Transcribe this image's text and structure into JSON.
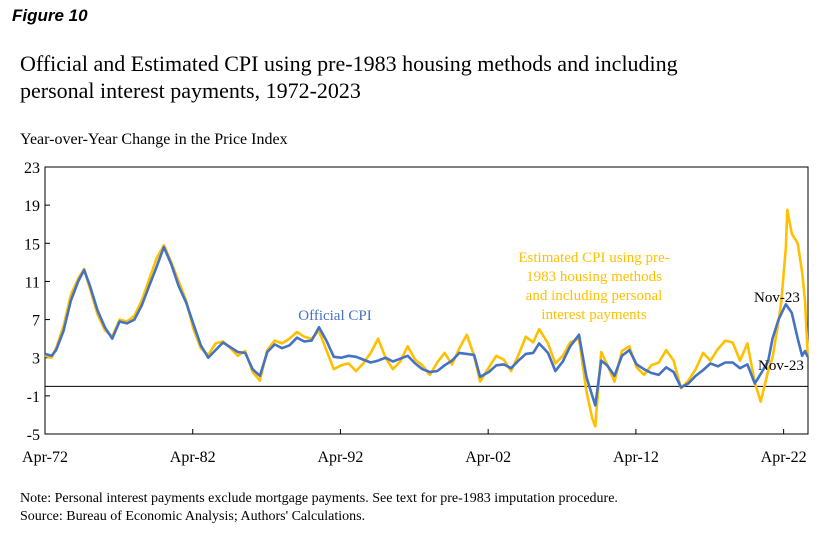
{
  "figure_label": "Figure 10",
  "title_line1": "Official and Estimated CPI using pre-1983 housing methods and including",
  "title_line2": "personal interest payments, 1972-2023",
  "note": "Note: Personal interest payments exclude mortgage payments. See text for pre-1983 imputation procedure.",
  "source": "Source: Bureau of Economic Analysis; Authors' Calculations.",
  "colors": {
    "official": "#4472C4",
    "estimated": "#FFC000",
    "axis": "#000000"
  },
  "chart_data": {
    "type": "line",
    "title": "Official and Estimated CPI using pre-1983 housing methods and including personal interest payments, 1972-2023",
    "ylabel": "Year-over-Year Change in the Price Index",
    "xlabel": "",
    "ylim": [
      -5,
      23
    ],
    "yticks": [
      -5,
      -1,
      3,
      7,
      11,
      15,
      19,
      23
    ],
    "xlim": [
      1972.25,
      2023.9
    ],
    "xticks": [
      {
        "label": "Apr-72",
        "x": 1972.25
      },
      {
        "label": "Apr-82",
        "x": 1982.25
      },
      {
        "label": "Apr-92",
        "x": 1992.25
      },
      {
        "label": "Apr-02",
        "x": 2002.25
      },
      {
        "label": "Apr-12",
        "x": 2012.25
      },
      {
        "label": "Apr-22",
        "x": 2022.25
      }
    ],
    "series": [
      {
        "name": "Official CPI",
        "label_lines": [
          "Official CPI"
        ],
        "points": [
          [
            1972.25,
            3.4
          ],
          [
            1972.7,
            3.2
          ],
          [
            1973.0,
            3.8
          ],
          [
            1973.5,
            5.8
          ],
          [
            1974.0,
            9.0
          ],
          [
            1974.5,
            11.0
          ],
          [
            1974.9,
            12.2
          ],
          [
            1975.3,
            10.5
          ],
          [
            1975.8,
            8.0
          ],
          [
            1976.3,
            6.2
          ],
          [
            1976.8,
            5.0
          ],
          [
            1977.3,
            6.8
          ],
          [
            1977.8,
            6.6
          ],
          [
            1978.3,
            7.0
          ],
          [
            1978.8,
            8.5
          ],
          [
            1979.3,
            10.5
          ],
          [
            1979.8,
            12.5
          ],
          [
            1980.3,
            14.6
          ],
          [
            1980.8,
            12.8
          ],
          [
            1981.3,
            10.5
          ],
          [
            1981.8,
            8.8
          ],
          [
            1982.3,
            6.5
          ],
          [
            1982.8,
            4.3
          ],
          [
            1983.3,
            3.0
          ],
          [
            1983.8,
            3.8
          ],
          [
            1984.3,
            4.6
          ],
          [
            1984.8,
            4.1
          ],
          [
            1985.3,
            3.6
          ],
          [
            1985.8,
            3.5
          ],
          [
            1986.3,
            1.8
          ],
          [
            1986.8,
            1.1
          ],
          [
            1987.3,
            3.6
          ],
          [
            1987.8,
            4.4
          ],
          [
            1988.3,
            4.0
          ],
          [
            1988.8,
            4.3
          ],
          [
            1989.3,
            5.1
          ],
          [
            1989.8,
            4.7
          ],
          [
            1990.3,
            4.8
          ],
          [
            1990.8,
            6.2
          ],
          [
            1991.3,
            4.8
          ],
          [
            1991.8,
            3.1
          ],
          [
            1992.3,
            3.0
          ],
          [
            1992.8,
            3.2
          ],
          [
            1993.3,
            3.1
          ],
          [
            1993.8,
            2.8
          ],
          [
            1994.3,
            2.5
          ],
          [
            1994.8,
            2.7
          ],
          [
            1995.3,
            3.0
          ],
          [
            1995.8,
            2.6
          ],
          [
            1996.3,
            2.9
          ],
          [
            1996.8,
            3.2
          ],
          [
            1997.3,
            2.4
          ],
          [
            1997.8,
            1.8
          ],
          [
            1998.3,
            1.5
          ],
          [
            1998.8,
            1.6
          ],
          [
            1999.3,
            2.2
          ],
          [
            1999.8,
            2.7
          ],
          [
            2000.3,
            3.5
          ],
          [
            2000.8,
            3.4
          ],
          [
            2001.3,
            3.3
          ],
          [
            2001.7,
            1.0
          ],
          [
            2002.3,
            1.5
          ],
          [
            2002.8,
            2.2
          ],
          [
            2003.3,
            2.3
          ],
          [
            2003.8,
            1.9
          ],
          [
            2004.3,
            2.7
          ],
          [
            2004.8,
            3.4
          ],
          [
            2005.3,
            3.5
          ],
          [
            2005.7,
            4.5
          ],
          [
            2006.3,
            3.5
          ],
          [
            2006.8,
            1.6
          ],
          [
            2007.3,
            2.6
          ],
          [
            2007.8,
            4.2
          ],
          [
            2008.4,
            5.4
          ],
          [
            2008.9,
            1.0
          ],
          [
            2009.3,
            -1.0
          ],
          [
            2009.5,
            -2.0
          ],
          [
            2009.9,
            2.7
          ],
          [
            2010.3,
            2.2
          ],
          [
            2010.8,
            1.1
          ],
          [
            2011.3,
            3.2
          ],
          [
            2011.8,
            3.8
          ],
          [
            2012.3,
            2.3
          ],
          [
            2012.8,
            1.8
          ],
          [
            2013.3,
            1.4
          ],
          [
            2013.8,
            1.2
          ],
          [
            2014.3,
            2.0
          ],
          [
            2014.8,
            1.5
          ],
          [
            2015.3,
            -0.1
          ],
          [
            2015.8,
            0.3
          ],
          [
            2016.3,
            1.1
          ],
          [
            2016.8,
            1.7
          ],
          [
            2017.3,
            2.4
          ],
          [
            2017.8,
            2.1
          ],
          [
            2018.3,
            2.5
          ],
          [
            2018.8,
            2.5
          ],
          [
            2019.3,
            1.9
          ],
          [
            2019.8,
            2.3
          ],
          [
            2020.3,
            0.3
          ],
          [
            2020.7,
            1.3
          ],
          [
            2021.2,
            2.6
          ],
          [
            2021.5,
            5.0
          ],
          [
            2021.9,
            7.0
          ],
          [
            2022.4,
            8.6
          ],
          [
            2022.8,
            7.7
          ],
          [
            2023.2,
            5.0
          ],
          [
            2023.5,
            3.2
          ],
          [
            2023.7,
            3.7
          ],
          [
            2023.88,
            3.1
          ]
        ]
      },
      {
        "name": "Estimated CPI using pre-1983 housing methods and including personal interest payments",
        "label_lines": [
          "Estimated CPI using pre-",
          "1983 housing methods",
          "and including  personal",
          "interest payments"
        ],
        "points": [
          [
            1972.25,
            3.2
          ],
          [
            1972.7,
            3.0
          ],
          [
            1973.0,
            4.0
          ],
          [
            1973.5,
            6.3
          ],
          [
            1974.0,
            9.6
          ],
          [
            1974.5,
            11.3
          ],
          [
            1974.9,
            12.3
          ],
          [
            1975.3,
            10.2
          ],
          [
            1975.8,
            7.6
          ],
          [
            1976.3,
            5.9
          ],
          [
            1976.8,
            5.2
          ],
          [
            1977.3,
            7.0
          ],
          [
            1977.8,
            6.8
          ],
          [
            1978.3,
            7.4
          ],
          [
            1978.8,
            9.0
          ],
          [
            1979.3,
            11.2
          ],
          [
            1979.8,
            13.4
          ],
          [
            1980.3,
            14.8
          ],
          [
            1980.8,
            13.0
          ],
          [
            1981.3,
            11.0
          ],
          [
            1981.8,
            9.0
          ],
          [
            1982.3,
            6.0
          ],
          [
            1982.8,
            4.0
          ],
          [
            1983.3,
            3.3
          ],
          [
            1983.8,
            4.5
          ],
          [
            1984.3,
            4.7
          ],
          [
            1984.8,
            4.0
          ],
          [
            1985.3,
            3.2
          ],
          [
            1985.8,
            3.7
          ],
          [
            1986.3,
            1.5
          ],
          [
            1986.8,
            0.6
          ],
          [
            1987.3,
            3.8
          ],
          [
            1987.8,
            4.8
          ],
          [
            1988.3,
            4.5
          ],
          [
            1988.8,
            5.0
          ],
          [
            1989.3,
            5.7
          ],
          [
            1989.8,
            5.2
          ],
          [
            1990.3,
            5.0
          ],
          [
            1990.8,
            5.8
          ],
          [
            1991.3,
            3.8
          ],
          [
            1991.8,
            1.8
          ],
          [
            1992.3,
            2.2
          ],
          [
            1992.8,
            2.4
          ],
          [
            1993.3,
            1.6
          ],
          [
            1993.8,
            2.4
          ],
          [
            1994.3,
            3.5
          ],
          [
            1994.8,
            5.0
          ],
          [
            1995.3,
            3.0
          ],
          [
            1995.8,
            1.8
          ],
          [
            1996.3,
            2.6
          ],
          [
            1996.8,
            4.2
          ],
          [
            1997.3,
            2.8
          ],
          [
            1997.8,
            2.2
          ],
          [
            1998.3,
            1.2
          ],
          [
            1998.8,
            2.5
          ],
          [
            1999.3,
            3.5
          ],
          [
            1999.8,
            2.3
          ],
          [
            2000.3,
            4.0
          ],
          [
            2000.8,
            5.4
          ],
          [
            2001.3,
            3.2
          ],
          [
            2001.7,
            0.5
          ],
          [
            2002.3,
            2.0
          ],
          [
            2002.8,
            3.2
          ],
          [
            2003.3,
            2.8
          ],
          [
            2003.8,
            1.6
          ],
          [
            2004.3,
            3.3
          ],
          [
            2004.8,
            5.2
          ],
          [
            2005.3,
            4.6
          ],
          [
            2005.7,
            6.0
          ],
          [
            2006.3,
            4.5
          ],
          [
            2006.8,
            2.4
          ],
          [
            2007.3,
            3.2
          ],
          [
            2007.8,
            4.6
          ],
          [
            2008.4,
            5.0
          ],
          [
            2008.9,
            -0.5
          ],
          [
            2009.3,
            -3.4
          ],
          [
            2009.5,
            -4.2
          ],
          [
            2009.9,
            3.6
          ],
          [
            2010.3,
            2.3
          ],
          [
            2010.8,
            0.5
          ],
          [
            2011.3,
            3.7
          ],
          [
            2011.8,
            4.2
          ],
          [
            2012.3,
            2.0
          ],
          [
            2012.8,
            1.2
          ],
          [
            2013.3,
            2.2
          ],
          [
            2013.8,
            2.5
          ],
          [
            2014.3,
            3.8
          ],
          [
            2014.8,
            2.7
          ],
          [
            2015.3,
            -0.2
          ],
          [
            2015.8,
            0.6
          ],
          [
            2016.3,
            1.8
          ],
          [
            2016.8,
            3.5
          ],
          [
            2017.3,
            2.7
          ],
          [
            2017.8,
            3.9
          ],
          [
            2018.3,
            4.8
          ],
          [
            2018.8,
            4.6
          ],
          [
            2019.3,
            2.7
          ],
          [
            2019.8,
            4.5
          ],
          [
            2020.3,
            0.4
          ],
          [
            2020.7,
            -1.6
          ],
          [
            2021.2,
            1.6
          ],
          [
            2021.5,
            3.0
          ],
          [
            2021.9,
            6.8
          ],
          [
            2022.1,
            9.0
          ],
          [
            2022.4,
            14.5
          ],
          [
            2022.5,
            18.5
          ],
          [
            2022.8,
            16.0
          ],
          [
            2023.2,
            15.0
          ],
          [
            2023.5,
            12.0
          ],
          [
            2023.7,
            9.0
          ],
          [
            2023.88,
            3.3
          ]
        ]
      }
    ],
    "annotations": [
      {
        "text": "Nov-23",
        "series": "estimated"
      },
      {
        "text": "Nov-23",
        "series": "official"
      }
    ]
  }
}
